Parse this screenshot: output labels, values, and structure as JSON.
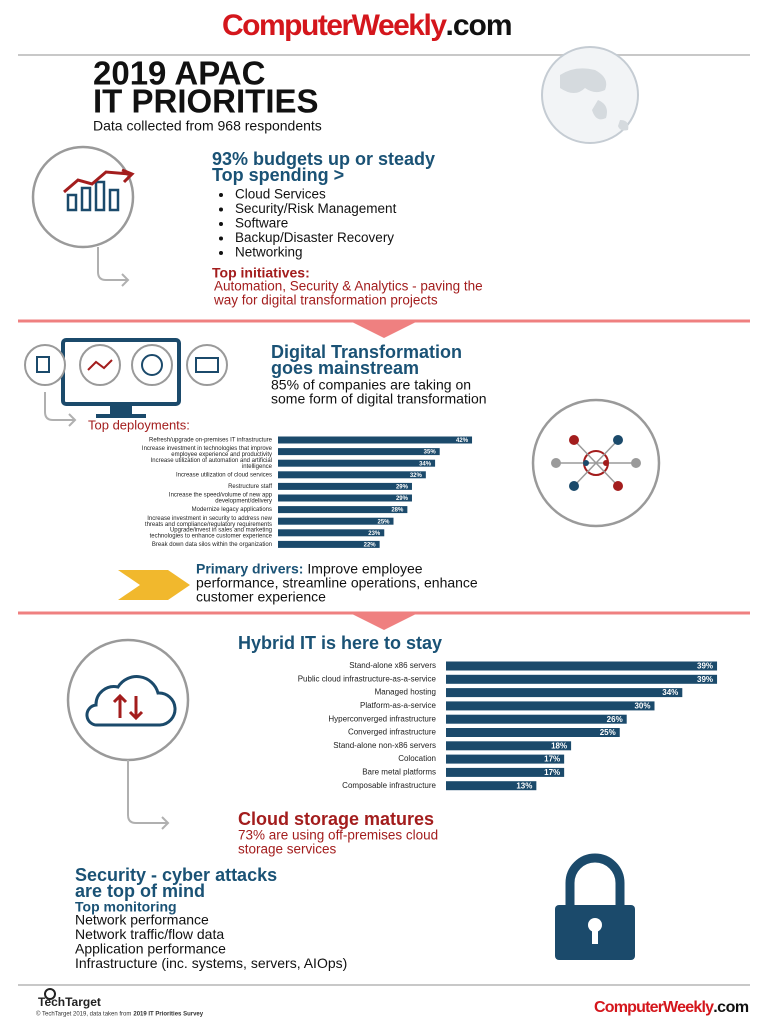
{
  "header": {
    "logo_main": "ComputerWeekly",
    "logo_suffix": ".com",
    "title_lines": [
      "2019 APAC",
      "IT PRIORITIES"
    ],
    "subtitle": "Data collected from 968 respondents"
  },
  "budgets": {
    "heading_lines": [
      "93% budgets up or steady",
      "Top spending >"
    ],
    "items": [
      "Cloud Services",
      "Security/Risk Management",
      "Software",
      "Backup/Disaster Recovery",
      "Networking"
    ],
    "initiatives_label": "Top initiatives:",
    "initiatives_lines": [
      "Automation, Security & Analytics - paving the",
      "way for digital transformation projects"
    ]
  },
  "transformation": {
    "heading_lines": [
      "Digital Transformation",
      "goes mainstream"
    ],
    "text_lines": [
      "85% of companies are taking on",
      "some form of digital transformation"
    ],
    "deployments": {
      "title": "Top deployments:",
      "color": "#1b4a6b",
      "categories": [
        [
          "Refresh/upgrade on-premises IT infrastructure"
        ],
        [
          "Increase investment in technologies that improve",
          "employee experience and productivity"
        ],
        [
          "Increase utilization of automation and artificial",
          "intelligence"
        ],
        [
          "Increase utilization of cloud services"
        ],
        [
          "Restructure staff"
        ],
        [
          "Increase the speed/volume of new app",
          "development/delivery"
        ],
        [
          "Modernize legacy applications"
        ],
        [
          "Increase investment in security to address new",
          "threats and compliance/regulatory requirements"
        ],
        [
          "Upgrade/invest in sales and marketing",
          "technologies to enhance customer experience"
        ],
        [
          "Break down data silos within the organization"
        ]
      ],
      "values": [
        42,
        35,
        34,
        32,
        29,
        29,
        28,
        25,
        23,
        22
      ],
      "value_labels": [
        "42%",
        "35%",
        "34%",
        "32%",
        "29%",
        "29%",
        "28%",
        "25%",
        "23%",
        "22%"
      ]
    }
  },
  "drivers": {
    "label": "Primary drivers:",
    "lines": [
      "Improve employee",
      "performance, streamline operations, enhance",
      "customer experience"
    ]
  },
  "hybrid": {
    "heading": "Hybrid IT is here to stay",
    "color": "#1b4a6b",
    "categories": [
      "Stand-alone x86 servers",
      "Public cloud infrastructure-as-a-service",
      "Managed hosting",
      "Platform-as-a-service",
      "Hyperconverged infrastructure",
      "Converged infrastructure",
      "Stand-alone non-x86 servers",
      "Colocation",
      "Bare metal platforms",
      "Composable infrastructure"
    ],
    "values": [
      39,
      39,
      34,
      30,
      26,
      25,
      18,
      17,
      17,
      13
    ],
    "value_labels": [
      "39%",
      "39%",
      "34%",
      "30%",
      "26%",
      "25%",
      "18%",
      "17%",
      "17%",
      "13%"
    ]
  },
  "cloud_storage": {
    "heading": "Cloud storage matures",
    "text_lines": [
      "73% are using off-premises cloud",
      "storage services"
    ]
  },
  "security": {
    "heading_lines": [
      "Security - cyber attacks",
      "are top of mind"
    ],
    "monitoring_label": "Top monitoring",
    "items": [
      "Network performance",
      "Network traffic/flow data",
      "Application performance",
      "Infrastructure (inc. systems, servers, AIOps)"
    ]
  },
  "footer": {
    "brand": "TechTarget",
    "credit": "© TechTarget 2019, data taken from",
    "survey": "2019 IT Priorities Survey",
    "logo_main": "ComputerWeekly",
    "logo_suffix": ".com"
  }
}
